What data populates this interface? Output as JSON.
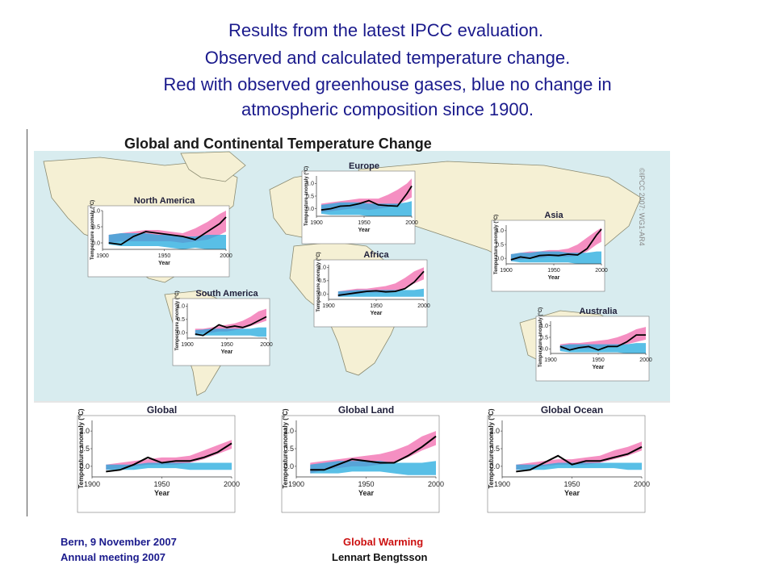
{
  "heading": {
    "line1": "Results from the latest IPCC evaluation.",
    "line2": "Observed and calculated temperature change.",
    "line3": "Red with observed greenhouse gases, blue no change in",
    "line4": "atmospheric composition since 1900."
  },
  "figure": {
    "title": "Global and Continental Temperature Change",
    "watermark": "©IPCC 2007: WG1-AR4"
  },
  "footer": {
    "left_line1": "Bern, 9 November  2007",
    "left_line2": "Annual  meeting  2007",
    "mid_line1": "Global  Warming",
    "mid_line2": "Lennart  Bengtsson"
  },
  "colors": {
    "observed": "#000000",
    "natural_and_anthropogenic": "#ee4499",
    "natural_only": "#22aadd",
    "ocean_background": "#d8ecef",
    "land": "#f5f0d4",
    "heading_text": "#1a1a8c",
    "footer_highlight": "#cc1111"
  },
  "chart_data": [
    {
      "type": "area",
      "title": "North America",
      "ylabel": "Temperature anomaly (°C)",
      "xlabel": "Year",
      "xlim": [
        1900,
        2000
      ],
      "ylim": [
        -0.2,
        1.0
      ],
      "xticks": [
        "1900",
        "1950",
        "2000"
      ],
      "yticks": [
        "0.0",
        "0.5",
        "1.0"
      ],
      "x": [
        1905,
        1915,
        1925,
        1935,
        1945,
        1955,
        1965,
        1975,
        1985,
        1995,
        2000
      ],
      "series": [
        {
          "type": "line",
          "values": [
            0.0,
            -0.05,
            0.2,
            0.35,
            0.3,
            0.25,
            0.2,
            0.1,
            0.35,
            0.6,
            0.8
          ]
        },
        {
          "type": "band",
          "lower": [
            0.0,
            0.05,
            0.05,
            0.05,
            0.05,
            0.05,
            0.0,
            0.05,
            0.1,
            0.25,
            0.35
          ],
          "upper": [
            0.25,
            0.3,
            0.35,
            0.4,
            0.4,
            0.35,
            0.3,
            0.45,
            0.65,
            0.9,
            1.0
          ]
        },
        {
          "type": "band",
          "lower": [
            -0.05,
            -0.1,
            -0.1,
            -0.1,
            -0.1,
            -0.15,
            -0.2,
            -0.15,
            -0.2,
            -0.2,
            -0.2
          ],
          "upper": [
            0.25,
            0.3,
            0.3,
            0.3,
            0.25,
            0.25,
            0.2,
            0.2,
            0.25,
            0.25,
            0.25
          ]
        }
      ]
    },
    {
      "type": "area",
      "title": "Europe",
      "ylabel": "Temperature anomaly (°C)",
      "xlabel": "Year",
      "xlim": [
        1900,
        2000
      ],
      "ylim": [
        -0.3,
        1.3
      ],
      "xticks": [
        "1900",
        "1950",
        "2000"
      ],
      "yticks": [
        "0.0",
        "0.5",
        "1.0"
      ],
      "x": [
        1905,
        1915,
        1925,
        1935,
        1945,
        1955,
        1965,
        1975,
        1985,
        1995,
        2000
      ],
      "series": [
        {
          "type": "line",
          "values": [
            -0.05,
            0.0,
            0.1,
            0.12,
            0.2,
            0.32,
            0.15,
            0.12,
            0.1,
            0.6,
            0.9
          ]
        },
        {
          "type": "band",
          "lower": [
            -0.15,
            -0.1,
            -0.05,
            0.0,
            0.0,
            -0.05,
            0.0,
            0.05,
            0.15,
            0.35,
            0.45
          ],
          "upper": [
            0.2,
            0.25,
            0.3,
            0.35,
            0.4,
            0.4,
            0.4,
            0.55,
            0.75,
            1.0,
            1.2
          ]
        },
        {
          "type": "band",
          "lower": [
            -0.2,
            -0.25,
            -0.25,
            -0.25,
            -0.25,
            -0.3,
            -0.3,
            -0.3,
            -0.3,
            -0.3,
            -0.3
          ],
          "upper": [
            0.15,
            0.2,
            0.25,
            0.25,
            0.25,
            0.2,
            0.2,
            0.2,
            0.2,
            0.25,
            0.3
          ]
        }
      ]
    },
    {
      "type": "area",
      "title": "Asia",
      "ylabel": "Temperature anomaly (°C)",
      "xlabel": "Year",
      "xlim": [
        1900,
        2000
      ],
      "ylim": [
        -0.2,
        1.2
      ],
      "xticks": [
        "1900",
        "1950",
        "2000"
      ],
      "yticks": [
        "0.0",
        "0.5",
        "1.0"
      ],
      "x": [
        1905,
        1915,
        1925,
        1935,
        1945,
        1955,
        1965,
        1975,
        1985,
        1995,
        2000
      ],
      "series": [
        {
          "type": "line",
          "values": [
            -0.05,
            0.05,
            0.0,
            0.1,
            0.12,
            0.1,
            0.15,
            0.12,
            0.35,
            0.85,
            1.05
          ]
        },
        {
          "type": "band",
          "lower": [
            -0.1,
            -0.05,
            0.0,
            0.0,
            0.05,
            0.05,
            0.05,
            0.1,
            0.25,
            0.5,
            0.6
          ],
          "upper": [
            0.15,
            0.2,
            0.25,
            0.25,
            0.3,
            0.3,
            0.35,
            0.5,
            0.75,
            1.0,
            1.1
          ]
        },
        {
          "type": "band",
          "lower": [
            -0.1,
            -0.15,
            -0.15,
            -0.15,
            -0.15,
            -0.15,
            -0.15,
            -0.2,
            -0.2,
            -0.2,
            -0.2
          ],
          "upper": [
            0.15,
            0.2,
            0.2,
            0.25,
            0.25,
            0.25,
            0.2,
            0.2,
            0.2,
            0.25,
            0.25
          ]
        }
      ]
    },
    {
      "type": "area",
      "title": "Africa",
      "ylabel": "Temperature anomaly (°C)",
      "xlabel": "Year",
      "xlim": [
        1900,
        2000
      ],
      "ylim": [
        -0.2,
        1.1
      ],
      "xticks": [
        "1900",
        "1950",
        "2000"
      ],
      "yticks": [
        "0.0",
        "0.5",
        "1.0"
      ],
      "x": [
        1910,
        1920,
        1930,
        1940,
        1950,
        1960,
        1970,
        1980,
        1990,
        2000
      ],
      "series": [
        {
          "type": "line",
          "values": [
            -0.05,
            0.0,
            0.05,
            0.1,
            0.12,
            0.08,
            0.1,
            0.2,
            0.45,
            0.85
          ]
        },
        {
          "type": "band",
          "lower": [
            -0.1,
            -0.05,
            0.0,
            0.05,
            0.05,
            0.05,
            0.1,
            0.2,
            0.4,
            0.55
          ],
          "upper": [
            0.1,
            0.15,
            0.2,
            0.2,
            0.25,
            0.3,
            0.4,
            0.6,
            0.85,
            1.0
          ]
        },
        {
          "type": "band",
          "lower": [
            -0.1,
            -0.1,
            -0.1,
            -0.1,
            -0.1,
            -0.1,
            -0.1,
            -0.1,
            -0.1,
            -0.1
          ],
          "upper": [
            0.1,
            0.12,
            0.15,
            0.15,
            0.15,
            0.15,
            0.15,
            0.15,
            0.15,
            0.2
          ]
        }
      ]
    },
    {
      "type": "area",
      "title": "South America",
      "ylabel": "Temperature anomaly (°C)",
      "xlabel": "Year",
      "xlim": [
        1900,
        2000
      ],
      "ylim": [
        -0.2,
        1.1
      ],
      "xticks": [
        "1900",
        "1950",
        "2000"
      ],
      "yticks": [
        "0.0",
        "0.5",
        "1.0"
      ],
      "x": [
        1910,
        1920,
        1930,
        1940,
        1950,
        1960,
        1970,
        1980,
        1990,
        2000
      ],
      "series": [
        {
          "type": "line",
          "values": [
            -0.05,
            -0.1,
            0.1,
            0.3,
            0.2,
            0.25,
            0.2,
            0.3,
            0.45,
            0.6
          ]
        },
        {
          "type": "band",
          "lower": [
            -0.05,
            0.0,
            0.0,
            0.05,
            0.05,
            0.1,
            0.15,
            0.25,
            0.35,
            0.45
          ],
          "upper": [
            0.15,
            0.15,
            0.2,
            0.25,
            0.3,
            0.35,
            0.45,
            0.6,
            0.8,
            0.9
          ]
        },
        {
          "type": "band",
          "lower": [
            -0.1,
            -0.1,
            -0.1,
            -0.1,
            -0.1,
            -0.1,
            -0.1,
            -0.1,
            -0.15,
            -0.15
          ],
          "upper": [
            0.1,
            0.12,
            0.15,
            0.15,
            0.15,
            0.15,
            0.15,
            0.15,
            0.2,
            0.2
          ]
        }
      ]
    },
    {
      "type": "area",
      "title": "Australia",
      "ylabel": "Temperature anomaly (°C)",
      "xlabel": "Year",
      "xlim": [
        1900,
        2000
      ],
      "ylim": [
        -0.2,
        1.2
      ],
      "xticks": [
        "1900",
        "1950",
        "2000"
      ],
      "yticks": [
        "0.0",
        "0.5",
        "1.0"
      ],
      "x": [
        1910,
        1920,
        1930,
        1940,
        1950,
        1960,
        1970,
        1980,
        1990,
        2000
      ],
      "series": [
        {
          "type": "line",
          "values": [
            0.1,
            -0.05,
            0.05,
            0.1,
            -0.05,
            0.1,
            0.1,
            0.3,
            0.6,
            0.6
          ]
        },
        {
          "type": "band",
          "lower": [
            -0.05,
            0.0,
            0.0,
            0.0,
            0.05,
            0.05,
            0.1,
            0.2,
            0.3,
            0.4
          ],
          "upper": [
            0.2,
            0.25,
            0.25,
            0.3,
            0.35,
            0.4,
            0.5,
            0.65,
            0.85,
            0.95
          ]
        },
        {
          "type": "band",
          "lower": [
            -0.1,
            -0.15,
            -0.15,
            -0.15,
            -0.15,
            -0.15,
            -0.15,
            -0.2,
            -0.2,
            -0.2
          ],
          "upper": [
            0.15,
            0.2,
            0.2,
            0.2,
            0.2,
            0.2,
            0.2,
            0.2,
            0.25,
            0.25
          ]
        }
      ]
    },
    {
      "type": "area",
      "title": "Global",
      "ylabel": "Temperature anomaly (°C)",
      "xlabel": "Year",
      "xlim": [
        1900,
        2000
      ],
      "ylim": [
        -0.3,
        1.3
      ],
      "xticks": [
        "1900",
        "1950",
        "2000"
      ],
      "yticks": [
        "0.0",
        "0.5",
        "1.0"
      ],
      "x": [
        1910,
        1920,
        1930,
        1940,
        1950,
        1960,
        1970,
        1980,
        1990,
        2000
      ],
      "series": [
        {
          "type": "line",
          "values": [
            -0.15,
            -0.1,
            0.05,
            0.25,
            0.1,
            0.15,
            0.15,
            0.25,
            0.4,
            0.65
          ]
        },
        {
          "type": "band",
          "lower": [
            -0.1,
            -0.05,
            0.0,
            0.05,
            0.05,
            0.05,
            0.1,
            0.2,
            0.35,
            0.5
          ],
          "upper": [
            0.05,
            0.1,
            0.15,
            0.2,
            0.25,
            0.25,
            0.3,
            0.45,
            0.6,
            0.75
          ]
        },
        {
          "type": "band",
          "lower": [
            -0.1,
            -0.1,
            -0.1,
            -0.05,
            -0.05,
            -0.05,
            -0.1,
            -0.1,
            -0.1,
            -0.1
          ],
          "upper": [
            0.05,
            0.05,
            0.05,
            0.1,
            0.1,
            0.1,
            0.1,
            0.1,
            0.1,
            0.1
          ]
        }
      ]
    },
    {
      "type": "area",
      "title": "Global Land",
      "ylabel": "Temperature anomaly (°C)",
      "xlabel": "Year",
      "xlim": [
        1900,
        2000
      ],
      "ylim": [
        -0.3,
        1.3
      ],
      "xticks": [
        "1900",
        "1950",
        "2000"
      ],
      "yticks": [
        "0.0",
        "0.5",
        "1.0"
      ],
      "x": [
        1910,
        1920,
        1930,
        1940,
        1950,
        1960,
        1970,
        1980,
        1990,
        2000
      ],
      "series": [
        {
          "type": "line",
          "values": [
            -0.1,
            -0.1,
            0.05,
            0.2,
            0.15,
            0.1,
            0.1,
            0.3,
            0.55,
            0.85
          ]
        },
        {
          "type": "band",
          "lower": [
            -0.2,
            -0.1,
            -0.05,
            0.0,
            0.0,
            0.05,
            0.1,
            0.25,
            0.45,
            0.6
          ],
          "upper": [
            0.1,
            0.15,
            0.2,
            0.25,
            0.3,
            0.35,
            0.45,
            0.6,
            0.85,
            1.0
          ]
        },
        {
          "type": "band",
          "lower": [
            -0.2,
            -0.2,
            -0.2,
            -0.15,
            -0.15,
            -0.15,
            -0.2,
            -0.25,
            -0.25,
            -0.25
          ],
          "upper": [
            0.05,
            0.1,
            0.15,
            0.15,
            0.15,
            0.15,
            0.1,
            0.1,
            0.1,
            0.15
          ]
        }
      ]
    },
    {
      "type": "area",
      "title": "Global Ocean",
      "ylabel": "Temperature anomaly (°C)",
      "xlabel": "Year",
      "xlim": [
        1900,
        2000
      ],
      "ylim": [
        -0.3,
        1.3
      ],
      "xticks": [
        "1900",
        "1950",
        "2000"
      ],
      "yticks": [
        "0.0",
        "0.5",
        "1.0"
      ],
      "x": [
        1910,
        1920,
        1930,
        1940,
        1950,
        1960,
        1970,
        1980,
        1990,
        2000
      ],
      "series": [
        {
          "type": "line",
          "values": [
            -0.15,
            -0.1,
            0.1,
            0.3,
            0.05,
            0.15,
            0.15,
            0.25,
            0.35,
            0.55
          ]
        },
        {
          "type": "band",
          "lower": [
            -0.1,
            -0.05,
            0.0,
            0.05,
            0.05,
            0.05,
            0.1,
            0.2,
            0.3,
            0.45
          ],
          "upper": [
            0.05,
            0.1,
            0.15,
            0.2,
            0.2,
            0.25,
            0.3,
            0.45,
            0.55,
            0.7
          ]
        },
        {
          "type": "band",
          "lower": [
            -0.1,
            -0.1,
            -0.1,
            -0.05,
            -0.05,
            -0.05,
            -0.05,
            -0.05,
            -0.1,
            -0.1
          ],
          "upper": [
            0.05,
            0.05,
            0.05,
            0.1,
            0.1,
            0.1,
            0.1,
            0.1,
            0.1,
            0.1
          ]
        }
      ]
    }
  ]
}
